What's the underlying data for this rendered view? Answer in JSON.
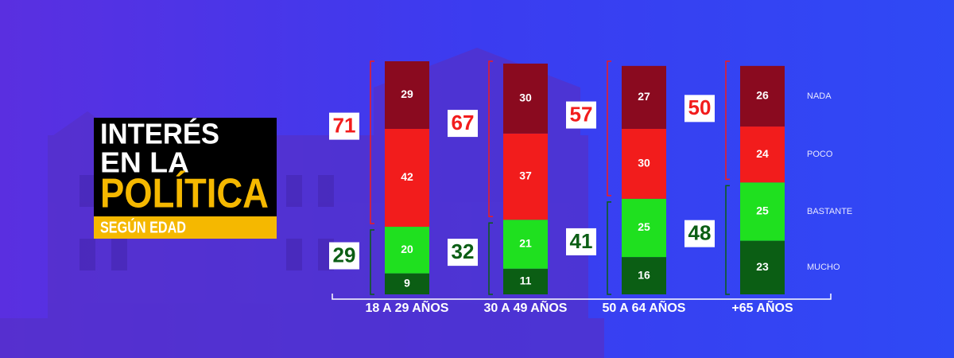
{
  "chart_data": {
    "type": "stacked_bar",
    "title_lines": [
      "INTERÉS",
      "EN LA",
      "POLÍTICA"
    ],
    "subtitle": "SEGÚN EDAD",
    "categories": [
      "18 A 29 AÑOS",
      "30 A 49 AÑOS",
      "50 A 64 AÑOS",
      "+65 AÑOS"
    ],
    "series": [
      {
        "name": "MUCHO",
        "color": "#0b5e14",
        "values": [
          9,
          11,
          16,
          23
        ]
      },
      {
        "name": "BASTANTE",
        "color": "#1fe01f",
        "values": [
          20,
          21,
          25,
          25
        ]
      },
      {
        "name": "POCO",
        "color": "#f21c1c",
        "values": [
          42,
          37,
          30,
          24
        ]
      },
      {
        "name": "NADA",
        "color": "#8a0a1f",
        "values": [
          29,
          30,
          27,
          26
        ]
      }
    ],
    "totals": {
      "low": {
        "color": "#0b5e14",
        "values": [
          29,
          32,
          41,
          48
        ]
      },
      "high": {
        "color": "#f21c1c",
        "values": [
          71,
          67,
          57,
          50
        ]
      }
    },
    "ylim": [
      0,
      100
    ]
  }
}
